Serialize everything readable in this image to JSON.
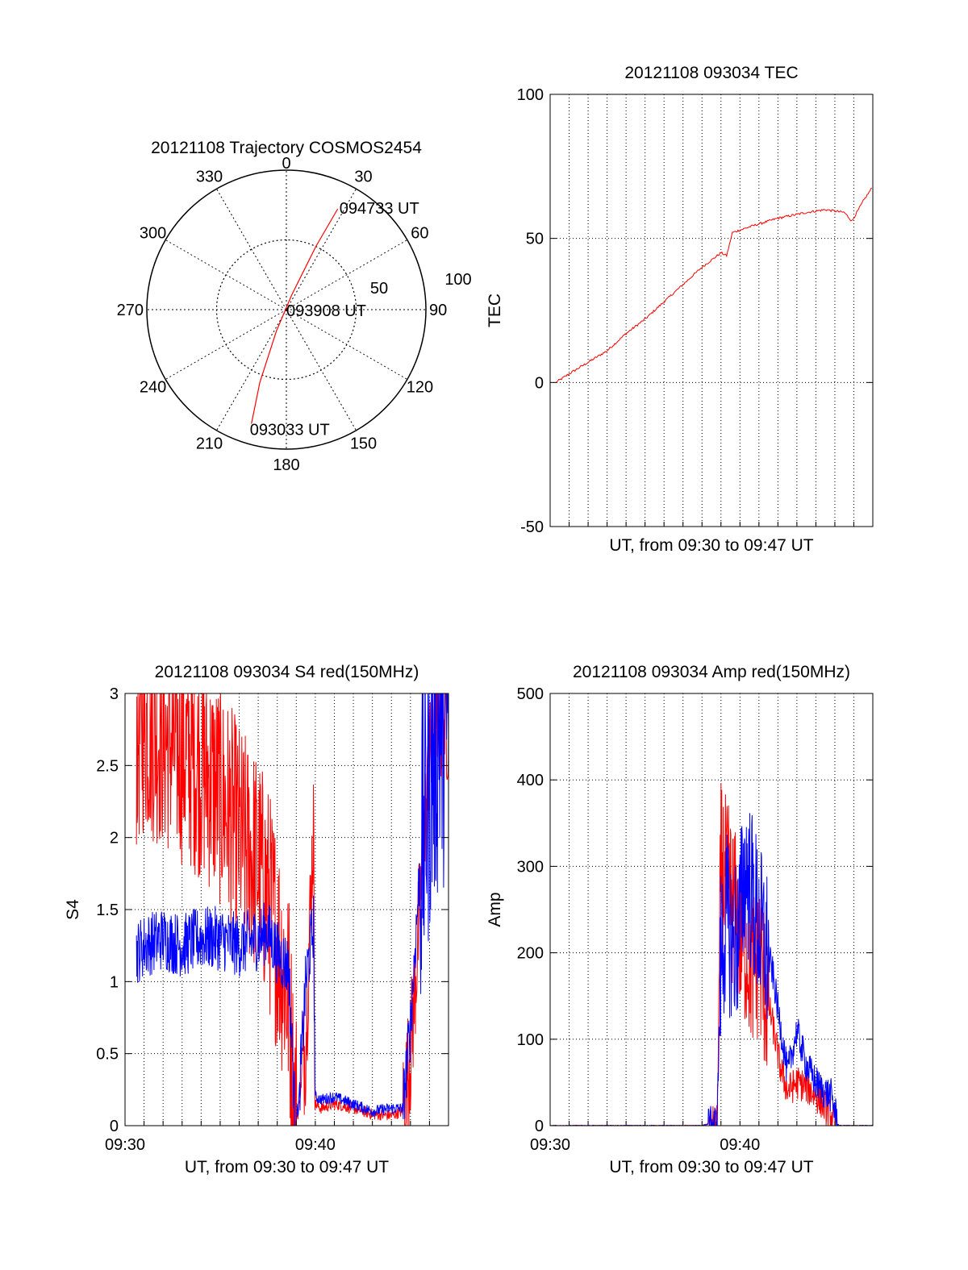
{
  "chart_data": [
    {
      "type": "polar",
      "title": "20121108 Trajectory COSMOS2454",
      "angle_ticks": [
        "0",
        "30",
        "60",
        "90",
        "120",
        "150",
        "180",
        "210",
        "240",
        "270",
        "300",
        "330"
      ],
      "radius_ticks": [
        "50",
        "100"
      ],
      "grid": true,
      "series": [
        {
          "color": "#ff0000",
          "points": [
            {
              "az": 197,
              "el": 13
            },
            {
              "az": 200,
              "el": 40
            },
            {
              "az": 205,
              "el": 75
            },
            {
              "az": 20,
              "el": 80
            },
            {
              "az": 25,
              "el": 45
            },
            {
              "az": 27,
              "el": 17
            }
          ]
        }
      ],
      "annotations": [
        {
          "text": "094733 UT",
          "az": 27,
          "el": 17
        },
        {
          "text": "093908 UT",
          "az": 90,
          "el": 95
        },
        {
          "text": "093033 UT",
          "az": 197,
          "el": 13
        }
      ]
    },
    {
      "type": "line",
      "title": "20121108 093034 TEC",
      "xlabel": "UT, from 09:30 to 09:47 UT",
      "ylabel": "TEC",
      "xlim": [
        0,
        17
      ],
      "ylim": [
        -50,
        100
      ],
      "yticks": [
        -50,
        0,
        50,
        100
      ],
      "xtick_labels": [],
      "grid": true,
      "series": [
        {
          "color": "#ff0000",
          "x": [
            0.3,
            1,
            2,
            3,
            4,
            5,
            6,
            7,
            8,
            9,
            9.3,
            9.6,
            10.5,
            12,
            13.5,
            14.5,
            15.5,
            15.9,
            16.5,
            17
          ],
          "y": [
            0,
            3,
            7,
            11,
            17,
            22,
            28,
            34,
            40,
            45,
            44,
            52,
            54,
            57,
            59,
            60,
            59,
            56,
            63,
            68
          ]
        }
      ]
    },
    {
      "type": "line",
      "title": "20121108 093034 S4 red(150MHz)",
      "xlabel": "UT, from 09:30 to 09:47 UT",
      "ylabel": "S4",
      "xlim": [
        0,
        17
      ],
      "ylim": [
        0,
        3
      ],
      "yticks": [
        "0",
        "0.5",
        "1",
        "1.5",
        "2",
        "2.5",
        "3"
      ],
      "xtick_labels": [
        {
          "x": 0,
          "label": "09:30"
        },
        {
          "x": 10,
          "label": "09:40"
        }
      ],
      "grid": true,
      "series": [
        {
          "color": "#ff0000",
          "x": [
            0.6,
            1,
            2,
            3,
            4,
            5,
            6,
            7,
            7.5,
            8,
            8.6,
            8.9,
            9.1,
            9.5,
            9.9,
            10,
            10.3,
            11,
            12,
            13,
            14,
            14.6,
            15,
            15.5,
            16,
            16.5,
            17
          ],
          "y": [
            2.7,
            2.8,
            2.7,
            2.6,
            2.5,
            2.3,
            2.0,
            1.8,
            1.6,
            1.3,
            0.9,
            0.1,
            0.08,
            0.6,
            2.1,
            0.15,
            0.12,
            0.15,
            0.12,
            0.08,
            0.07,
            0.1,
            0.5,
            1.5,
            2.5,
            2.8,
            2.8
          ]
        },
        {
          "color": "#0000ff",
          "x": [
            0.6,
            1,
            2,
            3,
            4,
            5,
            6,
            7,
            7.5,
            8,
            8.6,
            8.9,
            9.1,
            9.5,
            9.9,
            10,
            10.3,
            11,
            12,
            13,
            14,
            14.6,
            15,
            15.5,
            16,
            16.5,
            17
          ],
          "y": [
            1.2,
            1.25,
            1.3,
            1.25,
            1.3,
            1.3,
            1.25,
            1.3,
            1.35,
            1.2,
            1.1,
            0.15,
            0.1,
            1.0,
            1.4,
            0.2,
            0.18,
            0.2,
            0.15,
            0.1,
            0.12,
            0.12,
            0.7,
            1.8,
            2.5,
            2.8,
            2.9
          ]
        }
      ]
    },
    {
      "type": "line",
      "title": "20121108 093034 Amp red(150MHz)",
      "xlabel": "UT, from 09:30 to 09:47 UT",
      "ylabel": "Amp",
      "xlim": [
        0,
        17
      ],
      "ylim": [
        0,
        500
      ],
      "yticks": [
        "0",
        "100",
        "200",
        "300",
        "400",
        "500"
      ],
      "xtick_labels": [
        {
          "x": 0,
          "label": "09:30"
        },
        {
          "x": 10,
          "label": "09:40"
        }
      ],
      "grid": true,
      "series": [
        {
          "color": "#ff0000",
          "x": [
            0,
            8,
            8.8,
            9.0,
            9.3,
            9.6,
            9.9,
            10.3,
            10.7,
            11.0,
            11.3,
            11.7,
            12.1,
            12.5,
            13,
            13.5,
            14,
            14.4,
            14.8,
            15.2,
            17
          ],
          "y": [
            0,
            0,
            5,
            300,
            280,
            260,
            230,
            210,
            180,
            200,
            160,
            120,
            70,
            40,
            50,
            45,
            35,
            25,
            10,
            0,
            0
          ]
        },
        {
          "color": "#0000ff",
          "x": [
            0,
            8,
            8.8,
            9.0,
            9.3,
            9.6,
            9.9,
            10.3,
            10.7,
            11.0,
            11.3,
            11.7,
            12.1,
            12.5,
            13,
            13.5,
            14,
            14.4,
            14.8,
            15.2,
            17
          ],
          "y": [
            0,
            0,
            5,
            200,
            240,
            210,
            220,
            300,
            260,
            230,
            210,
            180,
            120,
            60,
            110,
            70,
            50,
            40,
            35,
            0,
            0
          ]
        }
      ]
    }
  ]
}
